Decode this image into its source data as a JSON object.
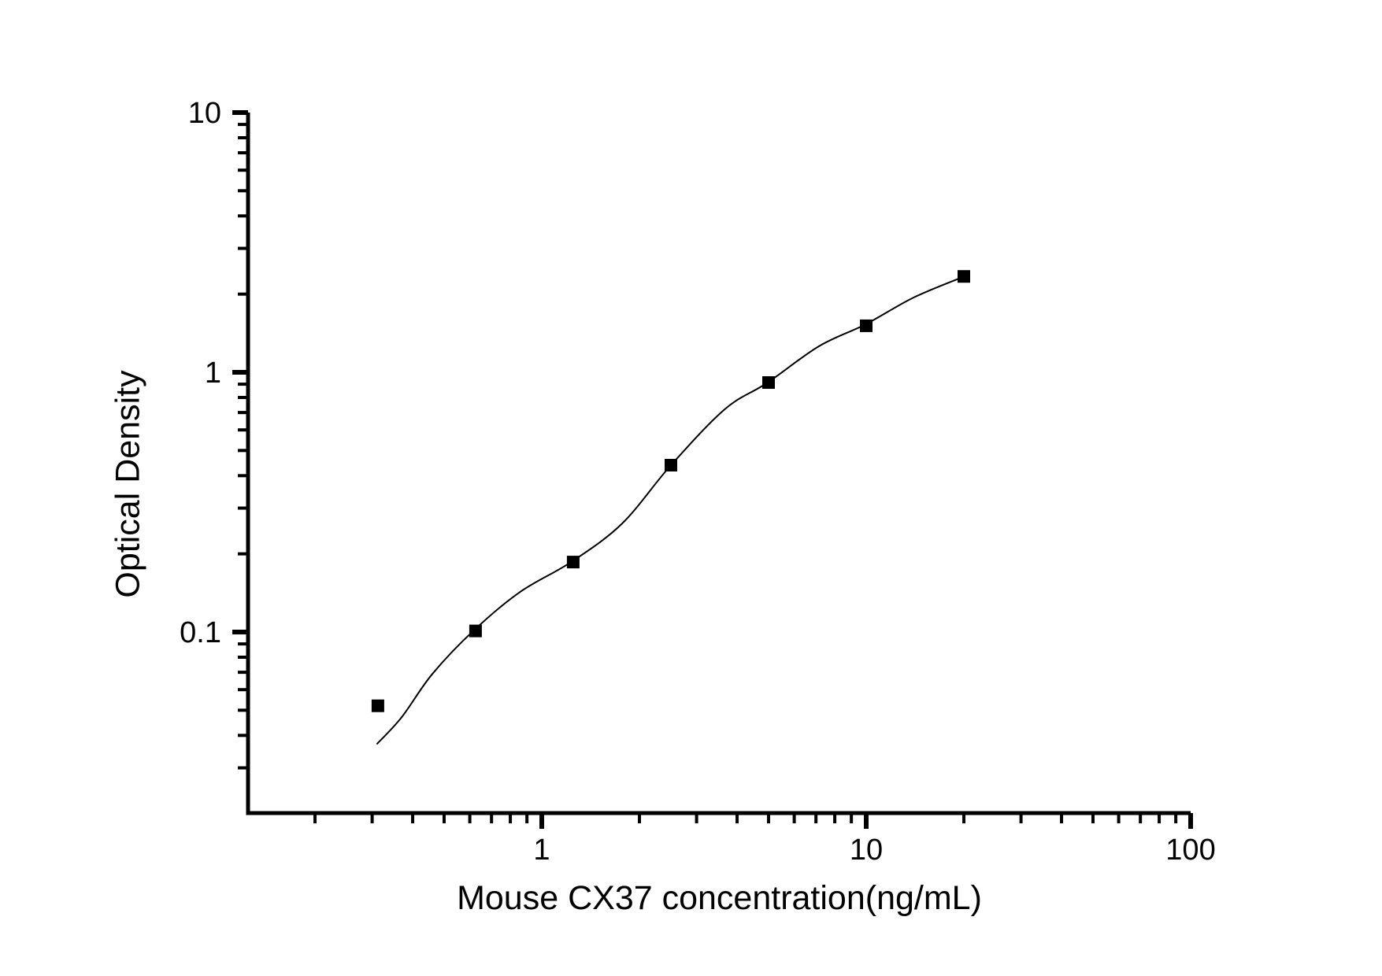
{
  "figure": {
    "background": "#ffffff",
    "ink_color": "#000000"
  },
  "chart_data": {
    "type": "scatter",
    "title": "",
    "xlabel": "Mouse CX37 concentration(ng/mL)",
    "ylabel": "Optical Density",
    "x_scale": "log10",
    "y_scale": "log10",
    "xlim": [
      0.124,
      100
    ],
    "ylim": [
      0.02,
      10
    ],
    "grid": false,
    "legend": null,
    "x_major_ticks": [
      1,
      10,
      100
    ],
    "x_major_tick_labels": [
      "1",
      "10",
      "100"
    ],
    "x_minor_ticks": [
      0.2,
      0.3,
      0.4,
      0.5,
      0.6,
      0.7,
      0.8,
      0.9,
      2,
      3,
      4,
      5,
      6,
      7,
      8,
      9,
      20,
      30,
      40,
      50,
      60,
      70,
      80,
      90
    ],
    "y_major_ticks": [
      0.1,
      1,
      10
    ],
    "y_major_tick_labels": [
      "0.1",
      "1",
      "10"
    ],
    "y_minor_ticks": [
      0.03,
      0.04,
      0.05,
      0.06,
      0.07,
      0.08,
      0.09,
      0.2,
      0.3,
      0.4,
      0.5,
      0.6,
      0.7,
      0.8,
      0.9,
      2,
      3,
      4,
      5,
      6,
      7,
      8,
      9
    ],
    "series": [
      {
        "name": "standard-points",
        "marker": "filled-square",
        "color": "#000000",
        "points": [
          {
            "x": 0.3125,
            "y": 0.052
          },
          {
            "x": 0.625,
            "y": 0.101
          },
          {
            "x": 1.25,
            "y": 0.186
          },
          {
            "x": 2.5,
            "y": 0.439
          },
          {
            "x": 5,
            "y": 0.913
          },
          {
            "x": 10,
            "y": 1.51
          },
          {
            "x": 20,
            "y": 2.34
          }
        ]
      }
    ],
    "fit_curve": {
      "name": "4pl-fit-line",
      "color": "#000000",
      "points": [
        [
          0.31,
          0.037
        ],
        [
          0.37,
          0.047
        ],
        [
          0.46,
          0.069
        ],
        [
          0.62,
          0.102
        ],
        [
          0.86,
          0.143
        ],
        [
          1.24,
          0.187
        ],
        [
          1.77,
          0.262
        ],
        [
          2.49,
          0.436
        ],
        [
          3.66,
          0.72
        ],
        [
          4.95,
          0.91
        ],
        [
          7.15,
          1.26
        ],
        [
          9.95,
          1.53
        ],
        [
          14.0,
          1.94
        ],
        [
          19.9,
          2.33
        ]
      ]
    }
  }
}
